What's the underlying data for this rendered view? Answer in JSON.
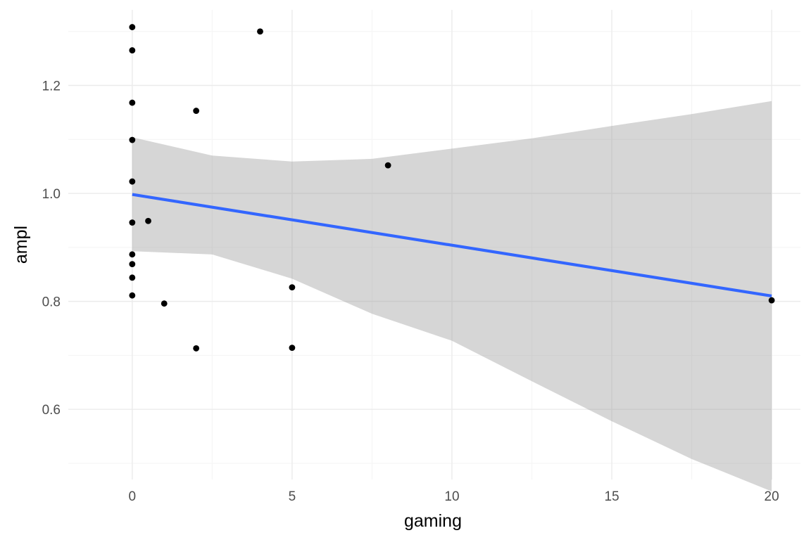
{
  "chart_data": {
    "type": "scatter",
    "title": "",
    "xlabel": "gaming",
    "ylabel": "ampl",
    "xlim": [
      -2,
      20.9
    ],
    "ylim": [
      0.47,
      1.34
    ],
    "x_ticks": [
      0,
      5,
      10,
      15,
      20
    ],
    "y_ticks": [
      0.6,
      0.8,
      1.0,
      1.2
    ],
    "x_tick_labels": [
      "0",
      "5",
      "10",
      "15",
      "20"
    ],
    "y_tick_labels": [
      "0.6",
      "0.8",
      "1.0",
      "1.2"
    ],
    "grid": true,
    "points": [
      {
        "x": 0,
        "y": 1.308
      },
      {
        "x": 0,
        "y": 1.265
      },
      {
        "x": 0,
        "y": 1.168
      },
      {
        "x": 0,
        "y": 1.099
      },
      {
        "x": 0,
        "y": 1.022
      },
      {
        "x": 0,
        "y": 0.946
      },
      {
        "x": 0,
        "y": 0.887
      },
      {
        "x": 0,
        "y": 0.869
      },
      {
        "x": 0,
        "y": 0.844
      },
      {
        "x": 0,
        "y": 0.811
      },
      {
        "x": 0.5,
        "y": 0.949
      },
      {
        "x": 1,
        "y": 0.796
      },
      {
        "x": 2,
        "y": 1.153
      },
      {
        "x": 2,
        "y": 0.713
      },
      {
        "x": 4,
        "y": 1.3
      },
      {
        "x": 5,
        "y": 0.826
      },
      {
        "x": 5,
        "y": 0.714
      },
      {
        "x": 8,
        "y": 1.052
      },
      {
        "x": 20,
        "y": 0.802
      }
    ],
    "regression_line": {
      "x": [
        0,
        20
      ],
      "y": [
        0.998,
        0.81
      ]
    },
    "confidence_band": {
      "x": [
        0,
        2.5,
        5,
        7.5,
        10,
        12.5,
        15,
        17.5,
        20
      ],
      "lower": [
        0.893,
        0.887,
        0.842,
        0.777,
        0.727,
        0.652,
        0.578,
        0.508,
        0.448
      ],
      "upper": [
        1.104,
        1.07,
        1.059,
        1.064,
        1.083,
        1.102,
        1.125,
        1.147,
        1.171
      ]
    },
    "colors": {
      "points": "#000000",
      "line": "#3366ff",
      "band": "#999999",
      "grid_major": "#ebebeb",
      "grid_minor": "#f5f5f5"
    }
  }
}
